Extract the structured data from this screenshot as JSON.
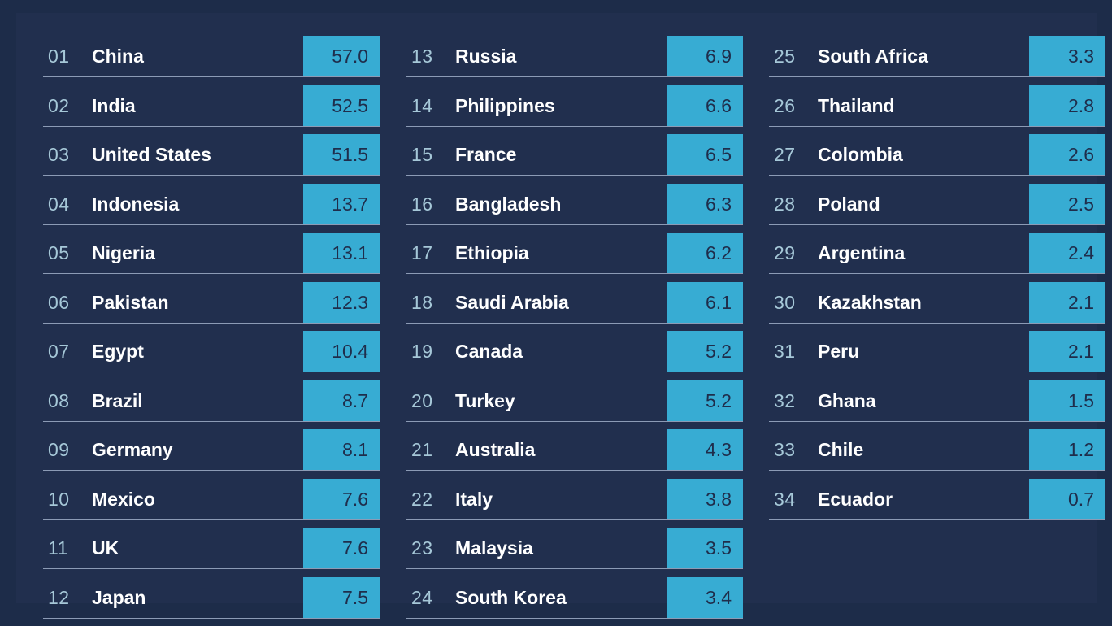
{
  "colors": {
    "background": "#212f4e",
    "value_box": "#37acd3",
    "rank_text": "#a6c8d8",
    "country_text": "#ffffff",
    "value_text": "#1f2d4b",
    "divider": "#8c9bb5"
  },
  "chart_data": {
    "type": "table",
    "columns": [
      "rank",
      "country",
      "value"
    ],
    "rows": [
      {
        "rank": "01",
        "country": "China",
        "value": "57.0"
      },
      {
        "rank": "02",
        "country": "India",
        "value": "52.5"
      },
      {
        "rank": "03",
        "country": "United States",
        "value": "51.5"
      },
      {
        "rank": "04",
        "country": "Indonesia",
        "value": "13.7"
      },
      {
        "rank": "05",
        "country": "Nigeria",
        "value": "13.1"
      },
      {
        "rank": "06",
        "country": "Pakistan",
        "value": "12.3"
      },
      {
        "rank": "07",
        "country": "Egypt",
        "value": "10.4"
      },
      {
        "rank": "08",
        "country": "Brazil",
        "value": "8.7"
      },
      {
        "rank": "09",
        "country": "Germany",
        "value": "8.1"
      },
      {
        "rank": "10",
        "country": "Mexico",
        "value": "7.6"
      },
      {
        "rank": "11",
        "country": "UK",
        "value": "7.6"
      },
      {
        "rank": "12",
        "country": "Japan",
        "value": "7.5"
      },
      {
        "rank": "13",
        "country": "Russia",
        "value": "6.9"
      },
      {
        "rank": "14",
        "country": "Philippines",
        "value": "6.6"
      },
      {
        "rank": "15",
        "country": "France",
        "value": "6.5"
      },
      {
        "rank": "16",
        "country": "Bangladesh",
        "value": "6.3"
      },
      {
        "rank": "17",
        "country": "Ethiopia",
        "value": "6.2"
      },
      {
        "rank": "18",
        "country": "Saudi Arabia",
        "value": "6.1"
      },
      {
        "rank": "19",
        "country": "Canada",
        "value": "5.2"
      },
      {
        "rank": "20",
        "country": "Turkey",
        "value": "5.2"
      },
      {
        "rank": "21",
        "country": "Australia",
        "value": "4.3"
      },
      {
        "rank": "22",
        "country": "Italy",
        "value": "3.8"
      },
      {
        "rank": "23",
        "country": "Malaysia",
        "value": "3.5"
      },
      {
        "rank": "24",
        "country": "South Korea",
        "value": "3.4"
      },
      {
        "rank": "25",
        "country": "South Africa",
        "value": "3.3"
      },
      {
        "rank": "26",
        "country": "Thailand",
        "value": "2.8"
      },
      {
        "rank": "27",
        "country": "Colombia",
        "value": "2.6"
      },
      {
        "rank": "28",
        "country": "Poland",
        "value": "2.5"
      },
      {
        "rank": "29",
        "country": "Argentina",
        "value": "2.4"
      },
      {
        "rank": "30",
        "country": "Kazakhstan",
        "value": "2.1"
      },
      {
        "rank": "31",
        "country": "Peru",
        "value": "2.1"
      },
      {
        "rank": "32",
        "country": "Ghana",
        "value": "1.5"
      },
      {
        "rank": "33",
        "country": "Chile",
        "value": "1.2"
      },
      {
        "rank": "34",
        "country": "Ecuador",
        "value": "0.7"
      }
    ]
  }
}
